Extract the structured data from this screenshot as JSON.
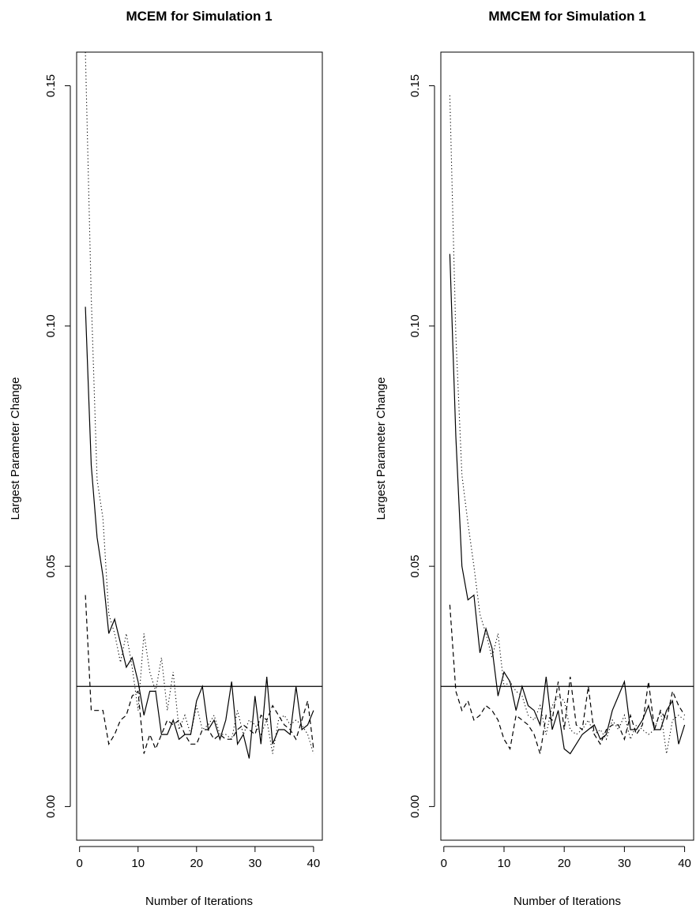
{
  "chart_data": [
    {
      "type": "line",
      "title": "MCEM for Simulation 1",
      "xlabel": "Number of Iterations",
      "ylabel": "Largest Parameter Change",
      "xlim": [
        -0.5,
        41.5
      ],
      "ylim": [
        -0.007,
        0.157
      ],
      "xticks": [
        "0",
        "10",
        "20",
        "30",
        "40"
      ],
      "yticks": [
        "0.00",
        "0.05",
        "0.10",
        "0.15"
      ],
      "reference_line": 0.025,
      "grid": false,
      "x": [
        1,
        2,
        3,
        4,
        5,
        6,
        7,
        8,
        9,
        10,
        11,
        12,
        13,
        14,
        15,
        16,
        17,
        18,
        19,
        20,
        21,
        22,
        23,
        24,
        25,
        26,
        27,
        28,
        29,
        30,
        31,
        32,
        33,
        34,
        35,
        36,
        37,
        38,
        39,
        40
      ],
      "series": [
        {
          "line_style": "solid",
          "values": [
            0.104,
            0.071,
            0.056,
            0.048,
            0.036,
            0.039,
            0.034,
            0.029,
            0.031,
            0.026,
            0.019,
            0.024,
            0.024,
            0.015,
            0.015,
            0.018,
            0.014,
            0.015,
            0.015,
            0.022,
            0.025,
            0.016,
            0.018,
            0.014,
            0.018,
            0.026,
            0.013,
            0.015,
            0.01,
            0.023,
            0.013,
            0.027,
            0.013,
            0.016,
            0.016,
            0.015,
            0.025,
            0.016,
            0.017,
            0.02
          ]
        },
        {
          "line_style": "dotted",
          "values": [
            0.157,
            0.106,
            0.068,
            0.06,
            0.04,
            0.036,
            0.03,
            0.036,
            0.029,
            0.02,
            0.036,
            0.028,
            0.024,
            0.031,
            0.02,
            0.028,
            0.016,
            0.019,
            0.015,
            0.021,
            0.016,
            0.017,
            0.019,
            0.015,
            0.015,
            0.014,
            0.02,
            0.015,
            0.018,
            0.017,
            0.015,
            0.018,
            0.011,
            0.018,
            0.019,
            0.017,
            0.018,
            0.017,
            0.015,
            0.011
          ]
        },
        {
          "line_style": "dashed",
          "values": [
            0.044,
            0.02,
            0.02,
            0.02,
            0.013,
            0.015,
            0.018,
            0.019,
            0.023,
            0.024,
            0.011,
            0.015,
            0.012,
            0.015,
            0.018,
            0.017,
            0.018,
            0.015,
            0.013,
            0.013,
            0.016,
            0.016,
            0.014,
            0.015,
            0.014,
            0.014,
            0.016,
            0.017,
            0.016,
            0.015,
            0.019,
            0.018,
            0.021,
            0.019,
            0.017,
            0.016,
            0.014,
            0.018,
            0.022,
            0.012
          ]
        }
      ]
    },
    {
      "type": "line",
      "title": "MMCEM for Simulation 1",
      "xlabel": "Number of Iterations",
      "ylabel": "Largest Parameter Change",
      "xlim": [
        -0.5,
        41.5
      ],
      "ylim": [
        -0.007,
        0.157
      ],
      "xticks": [
        "0",
        "10",
        "20",
        "30",
        "40"
      ],
      "yticks": [
        "0.00",
        "0.05",
        "0.10",
        "0.15"
      ],
      "reference_line": 0.025,
      "grid": false,
      "x": [
        1,
        2,
        3,
        4,
        5,
        6,
        7,
        8,
        9,
        10,
        11,
        12,
        13,
        14,
        15,
        16,
        17,
        18,
        19,
        20,
        21,
        22,
        23,
        24,
        25,
        26,
        27,
        28,
        29,
        30,
        31,
        32,
        33,
        34,
        35,
        36,
        37,
        38,
        39,
        40
      ],
      "series": [
        {
          "line_style": "solid",
          "values": [
            0.115,
            0.077,
            0.05,
            0.043,
            0.044,
            0.032,
            0.037,
            0.033,
            0.023,
            0.028,
            0.026,
            0.02,
            0.025,
            0.021,
            0.02,
            0.017,
            0.027,
            0.016,
            0.02,
            0.012,
            0.011,
            0.013,
            0.015,
            0.016,
            0.017,
            0.014,
            0.015,
            0.02,
            0.023,
            0.026,
            0.016,
            0.016,
            0.018,
            0.021,
            0.016,
            0.016,
            0.02,
            0.022,
            0.013,
            0.017
          ]
        },
        {
          "line_style": "dotted",
          "values": [
            0.148,
            0.098,
            0.069,
            0.059,
            0.05,
            0.04,
            0.036,
            0.031,
            0.036,
            0.025,
            0.026,
            0.024,
            0.023,
            0.019,
            0.018,
            0.021,
            0.015,
            0.021,
            0.023,
            0.022,
            0.016,
            0.015,
            0.016,
            0.018,
            0.015,
            0.016,
            0.014,
            0.018,
            0.016,
            0.019,
            0.014,
            0.017,
            0.016,
            0.015,
            0.016,
            0.02,
            0.011,
            0.018,
            0.019,
            0.018
          ]
        },
        {
          "line_style": "dashed",
          "values": [
            0.042,
            0.024,
            0.02,
            0.022,
            0.018,
            0.019,
            0.021,
            0.02,
            0.018,
            0.014,
            0.012,
            0.019,
            0.018,
            0.017,
            0.015,
            0.011,
            0.019,
            0.018,
            0.026,
            0.016,
            0.027,
            0.017,
            0.016,
            0.025,
            0.015,
            0.013,
            0.016,
            0.017,
            0.017,
            0.014,
            0.019,
            0.015,
            0.017,
            0.026,
            0.016,
            0.02,
            0.018,
            0.024,
            0.021,
            0.019
          ]
        }
      ]
    }
  ]
}
